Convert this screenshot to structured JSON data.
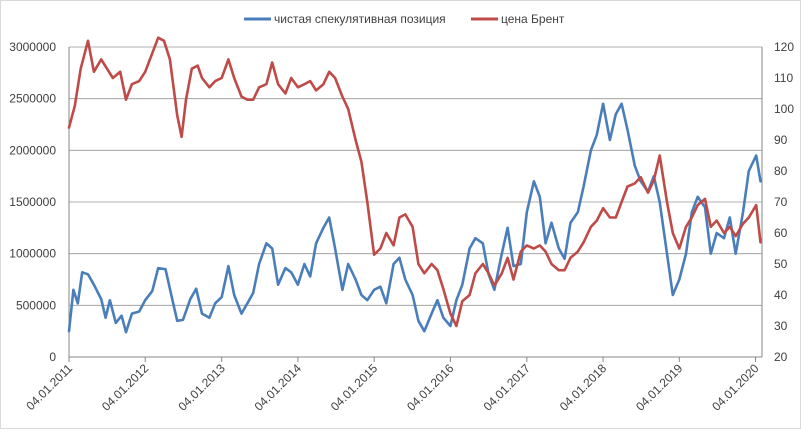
{
  "chart_data": {
    "type": "line",
    "title": "",
    "legend_position": "top",
    "grid": true,
    "y_left_ticks": [
      "0",
      "500000",
      "1000000",
      "1500000",
      "2000000",
      "2500000",
      "3000000"
    ],
    "y_right_ticks": [
      "20",
      "30",
      "40",
      "50",
      "60",
      "70",
      "80",
      "90",
      "100",
      "110",
      "120"
    ],
    "x_ticks": [
      "04.01.2011",
      "04.01.2012",
      "04.01.2013",
      "04.01.2014",
      "04.01.2015",
      "04.01.2016",
      "04.01.2017",
      "04.01.2018",
      "04.01.2019",
      "04.01.2020"
    ],
    "ylim_left": [
      0,
      3000000
    ],
    "ylim_right": [
      20,
      120
    ],
    "xlim": [
      "2011-01-04",
      "2020-02-04"
    ],
    "series": [
      {
        "name": "чистая спекулятивная позиция",
        "axis": "left",
        "color": "#4a7ebb",
        "points": [
          [
            "2011-01-04",
            250000
          ],
          [
            "2011-01-25",
            650000
          ],
          [
            "2011-02-15",
            520000
          ],
          [
            "2011-03-08",
            820000
          ],
          [
            "2011-04-05",
            800000
          ],
          [
            "2011-05-03",
            700000
          ],
          [
            "2011-06-07",
            560000
          ],
          [
            "2011-06-28",
            380000
          ],
          [
            "2011-07-19",
            550000
          ],
          [
            "2011-08-16",
            330000
          ],
          [
            "2011-09-13",
            400000
          ],
          [
            "2011-10-04",
            240000
          ],
          [
            "2011-11-01",
            420000
          ],
          [
            "2011-12-06",
            440000
          ],
          [
            "2012-01-04",
            550000
          ],
          [
            "2012-02-07",
            640000
          ],
          [
            "2012-03-06",
            860000
          ],
          [
            "2012-04-10",
            850000
          ],
          [
            "2012-05-08",
            600000
          ],
          [
            "2012-06-05",
            350000
          ],
          [
            "2012-07-03",
            360000
          ],
          [
            "2012-08-07",
            560000
          ],
          [
            "2012-09-04",
            660000
          ],
          [
            "2012-10-02",
            420000
          ],
          [
            "2012-11-06",
            380000
          ],
          [
            "2012-12-04",
            520000
          ],
          [
            "2013-01-04",
            580000
          ],
          [
            "2013-02-05",
            880000
          ],
          [
            "2013-03-05",
            600000
          ],
          [
            "2013-04-09",
            420000
          ],
          [
            "2013-05-07",
            520000
          ],
          [
            "2013-06-04",
            620000
          ],
          [
            "2013-07-02",
            900000
          ],
          [
            "2013-08-06",
            1100000
          ],
          [
            "2013-09-03",
            1050000
          ],
          [
            "2013-10-01",
            700000
          ],
          [
            "2013-11-05",
            860000
          ],
          [
            "2013-12-03",
            820000
          ],
          [
            "2014-01-04",
            700000
          ],
          [
            "2014-02-04",
            900000
          ],
          [
            "2014-03-04",
            780000
          ],
          [
            "2014-04-01",
            1100000
          ],
          [
            "2014-05-06",
            1250000
          ],
          [
            "2014-06-03",
            1350000
          ],
          [
            "2014-07-01",
            1050000
          ],
          [
            "2014-08-05",
            650000
          ],
          [
            "2014-09-02",
            900000
          ],
          [
            "2014-10-07",
            750000
          ],
          [
            "2014-11-04",
            600000
          ],
          [
            "2014-12-02",
            550000
          ],
          [
            "2015-01-04",
            650000
          ],
          [
            "2015-02-03",
            680000
          ],
          [
            "2015-03-03",
            520000
          ],
          [
            "2015-04-07",
            900000
          ],
          [
            "2015-05-05",
            960000
          ],
          [
            "2015-06-02",
            750000
          ],
          [
            "2015-07-07",
            600000
          ],
          [
            "2015-08-04",
            350000
          ],
          [
            "2015-09-01",
            250000
          ],
          [
            "2015-10-06",
            420000
          ],
          [
            "2015-11-03",
            550000
          ],
          [
            "2015-12-01",
            380000
          ],
          [
            "2016-01-04",
            300000
          ],
          [
            "2016-02-02",
            550000
          ],
          [
            "2016-03-01",
            700000
          ],
          [
            "2016-04-05",
            1050000
          ],
          [
            "2016-05-03",
            1150000
          ],
          [
            "2016-06-07",
            1100000
          ],
          [
            "2016-07-05",
            800000
          ],
          [
            "2016-08-02",
            650000
          ],
          [
            "2016-09-06",
            1000000
          ],
          [
            "2016-10-04",
            1250000
          ],
          [
            "2016-11-01",
            880000
          ],
          [
            "2016-12-06",
            900000
          ],
          [
            "2017-01-04",
            1400000
          ],
          [
            "2017-02-07",
            1700000
          ],
          [
            "2017-03-07",
            1550000
          ],
          [
            "2017-04-04",
            1100000
          ],
          [
            "2017-05-02",
            1300000
          ],
          [
            "2017-06-06",
            1050000
          ],
          [
            "2017-07-04",
            950000
          ],
          [
            "2017-08-01",
            1300000
          ],
          [
            "2017-09-05",
            1400000
          ],
          [
            "2017-10-03",
            1650000
          ],
          [
            "2017-11-07",
            2000000
          ],
          [
            "2017-12-05",
            2150000
          ],
          [
            "2018-01-04",
            2450000
          ],
          [
            "2018-02-06",
            2100000
          ],
          [
            "2018-03-06",
            2350000
          ],
          [
            "2018-04-03",
            2450000
          ],
          [
            "2018-05-01",
            2200000
          ],
          [
            "2018-06-05",
            1850000
          ],
          [
            "2018-07-03",
            1700000
          ],
          [
            "2018-08-07",
            1600000
          ],
          [
            "2018-09-04",
            1750000
          ],
          [
            "2018-10-02",
            1500000
          ],
          [
            "2018-11-06",
            1000000
          ],
          [
            "2018-12-04",
            600000
          ],
          [
            "2019-01-04",
            750000
          ],
          [
            "2019-02-05",
            1000000
          ],
          [
            "2019-03-05",
            1400000
          ],
          [
            "2019-04-02",
            1550000
          ],
          [
            "2019-05-07",
            1450000
          ],
          [
            "2019-06-04",
            1000000
          ],
          [
            "2019-07-02",
            1200000
          ],
          [
            "2019-08-06",
            1150000
          ],
          [
            "2019-09-03",
            1350000
          ],
          [
            "2019-10-01",
            1000000
          ],
          [
            "2019-11-05",
            1400000
          ],
          [
            "2019-12-03",
            1800000
          ],
          [
            "2020-01-07",
            1950000
          ],
          [
            "2020-01-28",
            1700000
          ]
        ]
      },
      {
        "name": "цена Брент",
        "axis": "right",
        "color": "#be4b48",
        "points": [
          [
            "2011-01-04",
            94
          ],
          [
            "2011-02-01",
            101
          ],
          [
            "2011-03-01",
            113
          ],
          [
            "2011-04-05",
            122
          ],
          [
            "2011-05-03",
            112
          ],
          [
            "2011-06-07",
            116
          ],
          [
            "2011-07-05",
            113
          ],
          [
            "2011-08-02",
            110
          ],
          [
            "2011-09-06",
            112
          ],
          [
            "2011-10-04",
            103
          ],
          [
            "2011-11-01",
            108
          ],
          [
            "2011-12-06",
            109
          ],
          [
            "2012-01-04",
            112
          ],
          [
            "2012-02-07",
            118
          ],
          [
            "2012-03-06",
            123
          ],
          [
            "2012-04-03",
            122
          ],
          [
            "2012-05-01",
            116
          ],
          [
            "2012-06-05",
            98
          ],
          [
            "2012-06-26",
            91
          ],
          [
            "2012-07-17",
            103
          ],
          [
            "2012-08-14",
            113
          ],
          [
            "2012-09-11",
            114
          ],
          [
            "2012-10-02",
            110
          ],
          [
            "2012-11-06",
            107
          ],
          [
            "2012-12-04",
            109
          ],
          [
            "2013-01-04",
            110
          ],
          [
            "2013-02-05",
            116
          ],
          [
            "2013-03-05",
            110
          ],
          [
            "2013-04-09",
            104
          ],
          [
            "2013-05-07",
            103
          ],
          [
            "2013-06-04",
            103
          ],
          [
            "2013-07-02",
            107
          ],
          [
            "2013-08-06",
            108
          ],
          [
            "2013-09-03",
            115
          ],
          [
            "2013-10-01",
            108
          ],
          [
            "2013-11-05",
            105
          ],
          [
            "2013-12-03",
            110
          ],
          [
            "2014-01-04",
            107
          ],
          [
            "2014-02-04",
            108
          ],
          [
            "2014-03-04",
            109
          ],
          [
            "2014-04-01",
            106
          ],
          [
            "2014-05-06",
            108
          ],
          [
            "2014-06-03",
            112
          ],
          [
            "2014-07-01",
            110
          ],
          [
            "2014-08-05",
            104
          ],
          [
            "2014-09-02",
            100
          ],
          [
            "2014-10-07",
            90
          ],
          [
            "2014-11-04",
            83
          ],
          [
            "2014-12-02",
            70
          ],
          [
            "2015-01-04",
            53
          ],
          [
            "2015-02-03",
            55
          ],
          [
            "2015-03-03",
            60
          ],
          [
            "2015-04-07",
            56
          ],
          [
            "2015-05-05",
            65
          ],
          [
            "2015-06-02",
            66
          ],
          [
            "2015-07-07",
            62
          ],
          [
            "2015-08-04",
            50
          ],
          [
            "2015-09-01",
            47
          ],
          [
            "2015-10-06",
            50
          ],
          [
            "2015-11-03",
            48
          ],
          [
            "2015-12-01",
            42
          ],
          [
            "2016-01-04",
            34
          ],
          [
            "2016-02-02",
            30
          ],
          [
            "2016-03-01",
            38
          ],
          [
            "2016-04-05",
            40
          ],
          [
            "2016-05-03",
            47
          ],
          [
            "2016-06-07",
            50
          ],
          [
            "2016-07-05",
            47
          ],
          [
            "2016-08-02",
            43
          ],
          [
            "2016-09-06",
            47
          ],
          [
            "2016-10-04",
            52
          ],
          [
            "2016-11-01",
            45
          ],
          [
            "2016-12-06",
            54
          ],
          [
            "2017-01-04",
            56
          ],
          [
            "2017-02-07",
            55
          ],
          [
            "2017-03-07",
            56
          ],
          [
            "2017-04-04",
            54
          ],
          [
            "2017-05-02",
            50
          ],
          [
            "2017-06-06",
            48
          ],
          [
            "2017-07-04",
            48
          ],
          [
            "2017-08-01",
            52
          ],
          [
            "2017-09-05",
            54
          ],
          [
            "2017-10-03",
            57
          ],
          [
            "2017-11-07",
            62
          ],
          [
            "2017-12-05",
            64
          ],
          [
            "2018-01-04",
            68
          ],
          [
            "2018-02-06",
            65
          ],
          [
            "2018-03-06",
            65
          ],
          [
            "2018-04-03",
            70
          ],
          [
            "2018-05-01",
            75
          ],
          [
            "2018-06-05",
            76
          ],
          [
            "2018-07-03",
            78
          ],
          [
            "2018-08-07",
            73
          ],
          [
            "2018-09-04",
            77
          ],
          [
            "2018-10-02",
            85
          ],
          [
            "2018-11-06",
            70
          ],
          [
            "2018-12-04",
            60
          ],
          [
            "2019-01-04",
            55
          ],
          [
            "2019-02-05",
            62
          ],
          [
            "2019-03-05",
            65
          ],
          [
            "2019-04-02",
            69
          ],
          [
            "2019-05-07",
            71
          ],
          [
            "2019-06-04",
            62
          ],
          [
            "2019-07-02",
            64
          ],
          [
            "2019-08-06",
            60
          ],
          [
            "2019-09-03",
            62
          ],
          [
            "2019-10-01",
            59
          ],
          [
            "2019-11-05",
            63
          ],
          [
            "2019-12-03",
            65
          ],
          [
            "2020-01-07",
            69
          ],
          [
            "2020-01-28",
            57
          ]
        ]
      }
    ]
  }
}
